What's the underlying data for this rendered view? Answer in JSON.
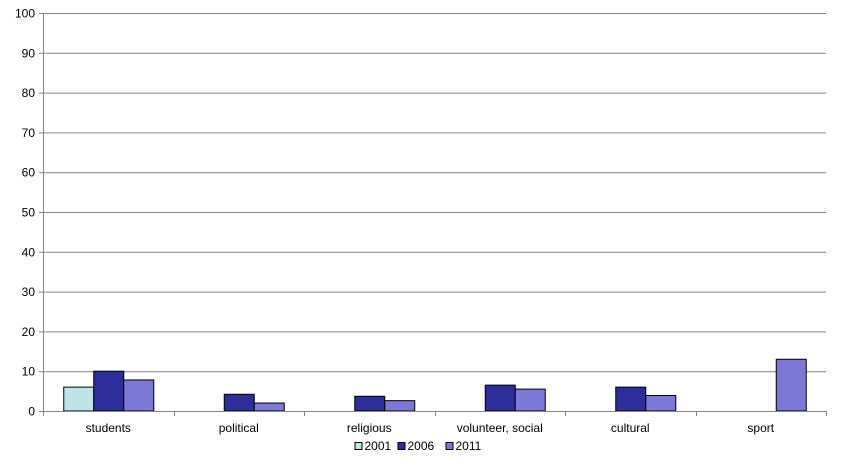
{
  "chart_data": {
    "type": "bar",
    "title": "",
    "xlabel": "",
    "ylabel": "",
    "ylim": [
      0,
      100
    ],
    "yticks": [
      0,
      10,
      20,
      30,
      40,
      50,
      60,
      70,
      80,
      90,
      100
    ],
    "grid": "horizontal",
    "legend_position": "bottom",
    "categories": [
      "students",
      "political",
      "religious",
      "volunteer, social",
      "cultural",
      "sport"
    ],
    "series": [
      {
        "name": "2001",
        "color": "#bfe4e8",
        "values": [
          6,
          null,
          null,
          null,
          null,
          null
        ]
      },
      {
        "name": "2006",
        "color": "#2e2e9a",
        "values": [
          10,
          4.2,
          3.7,
          6.5,
          6,
          null
        ]
      },
      {
        "name": "2011",
        "color": "#7d77d6",
        "values": [
          7.8,
          2,
          2.6,
          5.5,
          3.9,
          13
        ]
      }
    ]
  }
}
